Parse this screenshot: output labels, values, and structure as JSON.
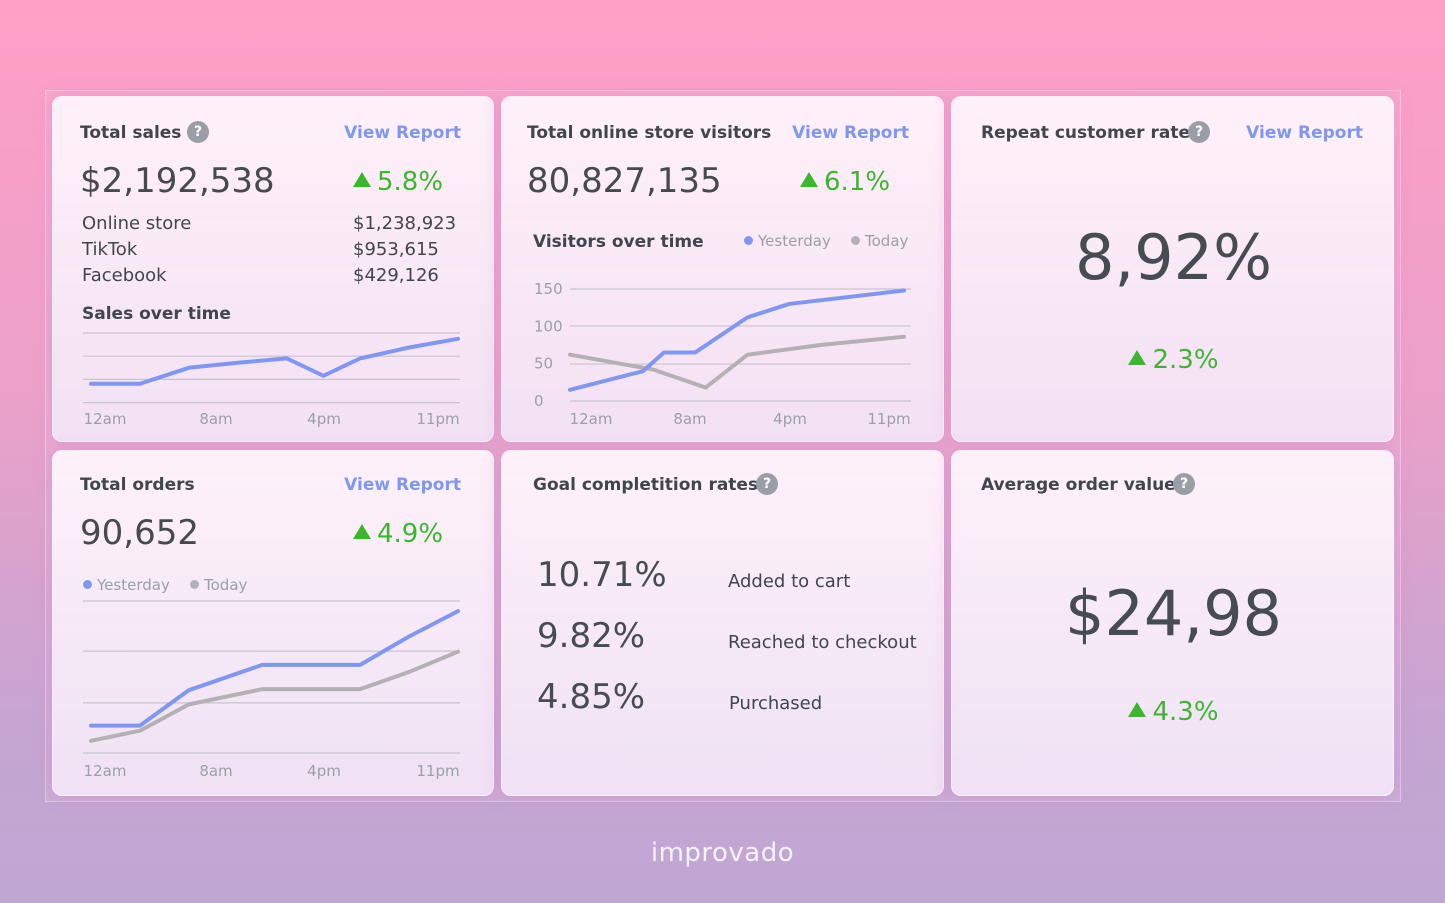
{
  "colors": {
    "accent": "#7f97f2",
    "today": "#b4b1b5",
    "positive": "#3cb52f"
  },
  "total_sales": {
    "title": "Total sales",
    "help": "?",
    "link": "View Report",
    "value": "$2,192,538",
    "delta": "5.8%",
    "rows": [
      {
        "label": "Online store",
        "value": "$1,238,923"
      },
      {
        "label": "TikTok",
        "value": "$953,615"
      },
      {
        "label": "Facebook",
        "value": "$429,126"
      }
    ],
    "chart_title": "Sales over time"
  },
  "visitors": {
    "title": "Total online store visitors",
    "link": "View Report",
    "value": "80,827,135",
    "delta": "6.1%",
    "chart_title": "Visitors over time",
    "legend_yesterday": "Yesterday",
    "legend_today": "Today"
  },
  "repeat": {
    "title": "Repeat customer rate",
    "help": "?",
    "link": "View Report",
    "value": "8,92%",
    "delta": "2.3%"
  },
  "orders": {
    "title": "Total orders",
    "link": "View Report",
    "value": "90,652",
    "delta": "4.9%",
    "legend_yesterday": "Yesterday",
    "legend_today": "Today"
  },
  "goals": {
    "title": "Goal completition rates",
    "help": "?",
    "items": [
      {
        "value": "10.71%",
        "label": "Added to cart"
      },
      {
        "value": "9.82%",
        "label": "Reached to checkout"
      },
      {
        "value": "4.85%",
        "label": "Purchased"
      }
    ]
  },
  "aov": {
    "title": "Average order value",
    "help": "?",
    "value": "$24,98",
    "delta": "4.3%"
  },
  "brand": "improvado",
  "chart_data": [
    {
      "type": "line",
      "title": "Sales over time",
      "categories": [
        "12am",
        "8am",
        "4pm",
        "11pm"
      ],
      "x": [
        0,
        2,
        4,
        6,
        8,
        9.5,
        11,
        13,
        15
      ],
      "series": [
        {
          "name": "Sales",
          "values": [
            10,
            10,
            32,
            39,
            45,
            21,
            45,
            60,
            72
          ]
        }
      ],
      "ylim": [
        0,
        80
      ]
    },
    {
      "type": "line",
      "title": "Visitors over time",
      "categories": [
        "12am",
        "8am",
        "4pm",
        "11pm"
      ],
      "x": [
        0,
        2,
        4,
        6,
        8,
        10,
        12,
        14,
        16
      ],
      "yticks": [
        0,
        50,
        100,
        150
      ],
      "ylim": [
        0,
        150
      ],
      "series": [
        {
          "name": "Yesterday",
          "values": [
            15,
            40,
            65,
            65,
            112,
            130,
            148
          ],
          "x": [
            0,
            3.5,
            4.5,
            6,
            8.5,
            10.5,
            16
          ]
        },
        {
          "name": "Today",
          "values": [
            62,
            42,
            18,
            62,
            75,
            86
          ],
          "x": [
            0,
            4,
            6.5,
            8.5,
            12,
            16
          ]
        }
      ]
    },
    {
      "type": "line",
      "title": "Total orders",
      "categories": [
        "12am",
        "8am",
        "4pm",
        "11pm"
      ],
      "ylim": [
        0,
        150
      ],
      "series": [
        {
          "name": "Yesterday",
          "values": [
            27,
            27,
            62,
            87,
            87,
            87,
            115,
            140
          ],
          "x": [
            0,
            2,
            4,
            7,
            9,
            11,
            13,
            15
          ]
        },
        {
          "name": "Today",
          "values": [
            12,
            22,
            48,
            63,
            63,
            63,
            80,
            100
          ],
          "x": [
            0,
            2,
            4,
            7,
            9,
            11,
            13,
            15
          ]
        }
      ]
    }
  ]
}
